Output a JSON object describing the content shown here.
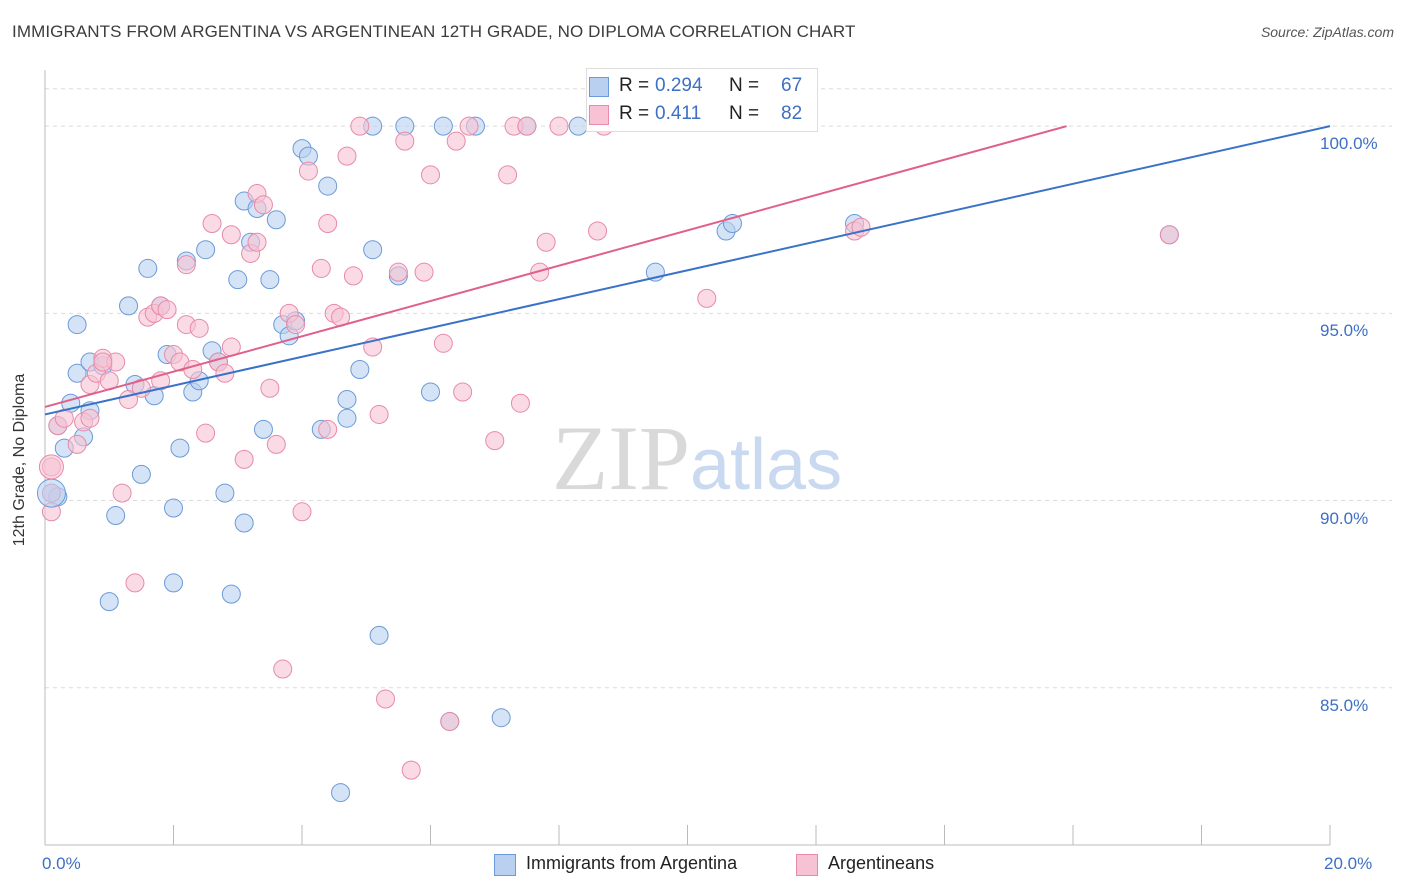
{
  "title": "IMMIGRANTS FROM ARGENTINA VS ARGENTINEAN 12TH GRADE, NO DIPLOMA CORRELATION CHART",
  "source": "Source: ZipAtlas.com",
  "watermark": {
    "zip": "ZIP",
    "atlas": "atlas"
  },
  "legend": {
    "r_label": "R =",
    "n_label": "N =",
    "series": [
      {
        "r": "0.294",
        "n": "67"
      },
      {
        "r": "0.411",
        "n": "82"
      }
    ]
  },
  "colors": {
    "blue_fill": "#b9d0f0",
    "blue_stroke": "#6b9ad8",
    "blue_line": "#3a72c8",
    "pink_fill": "#f7c3d4",
    "pink_stroke": "#e88aa8",
    "pink_line": "#e0608a",
    "tick_text": "#3d6fc4",
    "grid": "#dcdcdc"
  },
  "chart_data": {
    "type": "scatter",
    "title": "IMMIGRANTS FROM ARGENTINA VS ARGENTINEAN 12TH GRADE, NO DIPLOMA CORRELATION CHART",
    "xlabel": "",
    "ylabel": "12th Grade, No Diploma",
    "xlim": [
      0,
      20
    ],
    "ylim": [
      80.8,
      101.5
    ],
    "x_tick_labels": [
      "0.0%",
      "20.0%"
    ],
    "y_ticks": [
      85,
      90,
      95,
      100
    ],
    "y_tick_labels": [
      "85.0%",
      "90.0%",
      "95.0%",
      "100.0%"
    ],
    "grid": true,
    "legend_position": "top-center",
    "series": [
      {
        "name": "Immigrants from Argentina",
        "color": "#6b9ad8",
        "trend": {
          "x": [
            0,
            20
          ],
          "y": [
            92.3,
            100.0
          ]
        },
        "points": [
          [
            0.1,
            90.2
          ],
          [
            0.2,
            92.0
          ],
          [
            0.3,
            91.4
          ],
          [
            0.4,
            92.6
          ],
          [
            0.5,
            94.7
          ],
          [
            0.5,
            93.4
          ],
          [
            0.6,
            91.7
          ],
          [
            0.7,
            92.4
          ],
          [
            0.7,
            93.7
          ],
          [
            0.9,
            93.6
          ],
          [
            1.0,
            87.3
          ],
          [
            1.1,
            89.6
          ],
          [
            1.3,
            95.2
          ],
          [
            1.4,
            93.1
          ],
          [
            1.5,
            90.7
          ],
          [
            1.6,
            96.2
          ],
          [
            1.7,
            92.8
          ],
          [
            1.8,
            95.2
          ],
          [
            1.9,
            93.9
          ],
          [
            2.0,
            89.8
          ],
          [
            2.0,
            87.8
          ],
          [
            2.1,
            91.4
          ],
          [
            2.2,
            96.4
          ],
          [
            2.3,
            92.9
          ],
          [
            2.4,
            93.2
          ],
          [
            2.5,
            96.7
          ],
          [
            2.6,
            94.0
          ],
          [
            2.7,
            93.7
          ],
          [
            2.8,
            90.2
          ],
          [
            2.9,
            87.5
          ],
          [
            3.0,
            95.9
          ],
          [
            3.1,
            89.4
          ],
          [
            3.1,
            98.0
          ],
          [
            3.2,
            96.9
          ],
          [
            3.3,
            97.8
          ],
          [
            3.4,
            91.9
          ],
          [
            3.5,
            95.9
          ],
          [
            3.6,
            97.5
          ],
          [
            3.7,
            94.7
          ],
          [
            3.8,
            94.4
          ],
          [
            3.9,
            94.8
          ],
          [
            4.0,
            99.4
          ],
          [
            4.1,
            99.2
          ],
          [
            4.3,
            91.9
          ],
          [
            4.4,
            98.4
          ],
          [
            4.6,
            82.2
          ],
          [
            4.7,
            92.2
          ],
          [
            4.7,
            92.7
          ],
          [
            4.9,
            93.5
          ],
          [
            5.1,
            96.7
          ],
          [
            5.1,
            100.0
          ],
          [
            5.2,
            86.4
          ],
          [
            5.5,
            96.0
          ],
          [
            5.6,
            100.0
          ],
          [
            6.0,
            92.9
          ],
          [
            6.2,
            100.0
          ],
          [
            6.3,
            84.1
          ],
          [
            6.7,
            100.0
          ],
          [
            7.1,
            84.2
          ],
          [
            7.5,
            100.0
          ],
          [
            8.3,
            100.0
          ],
          [
            9.5,
            96.1
          ],
          [
            10.6,
            97.2
          ],
          [
            10.7,
            97.4
          ],
          [
            12.6,
            97.4
          ],
          [
            17.5,
            97.1
          ],
          [
            0.2,
            90.1
          ]
        ]
      },
      {
        "name": "Argentineans",
        "color": "#e88aa8",
        "trend": {
          "x": [
            0,
            15.9
          ],
          "y": [
            92.5,
            100.0
          ]
        },
        "points": [
          [
            0.1,
            89.7
          ],
          [
            0.1,
            90.9
          ],
          [
            0.2,
            92.0
          ],
          [
            0.3,
            92.2
          ],
          [
            0.5,
            91.5
          ],
          [
            0.6,
            92.1
          ],
          [
            0.7,
            92.2
          ],
          [
            0.7,
            93.1
          ],
          [
            0.8,
            93.4
          ],
          [
            0.9,
            93.8
          ],
          [
            1.0,
            93.2
          ],
          [
            1.1,
            93.7
          ],
          [
            1.2,
            90.2
          ],
          [
            1.3,
            92.7
          ],
          [
            1.4,
            87.8
          ],
          [
            1.5,
            93.0
          ],
          [
            1.6,
            94.9
          ],
          [
            1.7,
            95.0
          ],
          [
            1.8,
            93.2
          ],
          [
            1.8,
            95.2
          ],
          [
            2.0,
            93.9
          ],
          [
            2.1,
            93.7
          ],
          [
            2.2,
            94.7
          ],
          [
            2.2,
            96.3
          ],
          [
            2.3,
            93.5
          ],
          [
            2.4,
            94.6
          ],
          [
            2.5,
            91.8
          ],
          [
            2.6,
            97.4
          ],
          [
            2.7,
            93.7
          ],
          [
            2.8,
            93.4
          ],
          [
            2.9,
            94.1
          ],
          [
            2.9,
            97.1
          ],
          [
            3.1,
            91.1
          ],
          [
            3.2,
            96.6
          ],
          [
            3.3,
            98.2
          ],
          [
            3.4,
            97.9
          ],
          [
            3.5,
            93.0
          ],
          [
            3.6,
            91.5
          ],
          [
            3.7,
            85.5
          ],
          [
            3.8,
            95.0
          ],
          [
            3.9,
            94.7
          ],
          [
            4.0,
            89.7
          ],
          [
            4.1,
            98.8
          ],
          [
            4.3,
            96.2
          ],
          [
            4.4,
            97.4
          ],
          [
            4.5,
            95.0
          ],
          [
            4.6,
            94.9
          ],
          [
            4.7,
            99.2
          ],
          [
            4.8,
            96.0
          ],
          [
            4.9,
            100.0
          ],
          [
            5.1,
            94.1
          ],
          [
            5.2,
            92.3
          ],
          [
            5.3,
            84.7
          ],
          [
            5.5,
            96.1
          ],
          [
            5.6,
            99.6
          ],
          [
            5.7,
            82.8
          ],
          [
            5.9,
            96.1
          ],
          [
            6.0,
            98.7
          ],
          [
            6.2,
            94.2
          ],
          [
            6.4,
            99.6
          ],
          [
            6.5,
            92.9
          ],
          [
            6.6,
            100.0
          ],
          [
            7.0,
            91.6
          ],
          [
            7.2,
            98.7
          ],
          [
            7.3,
            100.0
          ],
          [
            7.4,
            92.6
          ],
          [
            7.5,
            100.0
          ],
          [
            7.7,
            96.1
          ],
          [
            7.8,
            96.9
          ],
          [
            8.0,
            100.0
          ],
          [
            8.6,
            97.2
          ],
          [
            8.7,
            100.0
          ],
          [
            10.3,
            95.4
          ],
          [
            12.6,
            97.2
          ],
          [
            12.7,
            97.3
          ],
          [
            6.3,
            84.1
          ],
          [
            17.5,
            97.1
          ],
          [
            0.1,
            90.2
          ],
          [
            4.4,
            91.9
          ],
          [
            1.9,
            95.1
          ],
          [
            3.3,
            96.9
          ],
          [
            0.9,
            93.7
          ]
        ]
      }
    ]
  },
  "bottom_legend": [
    "Immigrants from Argentina",
    "Argentineans"
  ]
}
